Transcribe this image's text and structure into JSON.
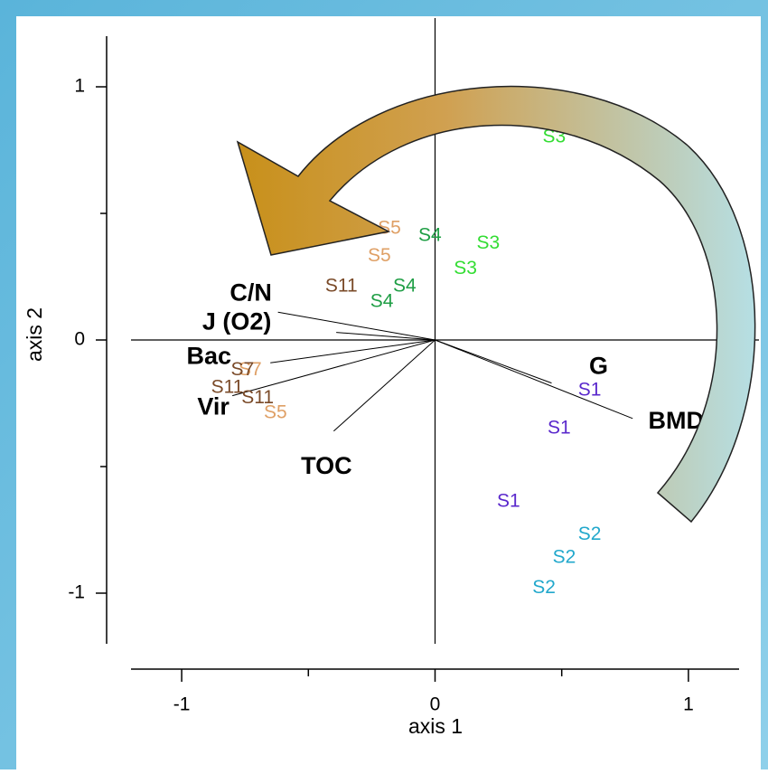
{
  "chart_data": {
    "type": "biplot",
    "x_label": "axis 1",
    "y_label": "axis 2",
    "xlim": [
      -1.2,
      1.2
    ],
    "ylim": [
      -1.2,
      1.2
    ],
    "xticks": [
      -1,
      0,
      1
    ],
    "yticks": [
      -1,
      0,
      1
    ],
    "xminor_ticks": [
      -0.5,
      0.5
    ],
    "yminor_ticks": [
      -0.5,
      0.5
    ],
    "vectors": {
      "labels": [
        "C/N",
        "J (O2)",
        "Bac",
        "Vir",
        "TOC",
        "G",
        "BMD"
      ],
      "x": [
        -0.62,
        -0.39,
        -0.65,
        -0.8,
        -0.4,
        0.46,
        0.78
      ],
      "y": [
        0.11,
        0.03,
        -0.09,
        -0.22,
        -0.36,
        -0.17,
        -0.31
      ]
    },
    "series": [
      {
        "name": "S3",
        "color": "#33dd33",
        "x": [
          0.47,
          0.21,
          0.12
        ],
        "y": [
          0.8,
          0.38,
          0.28
        ]
      },
      {
        "name": "S4",
        "color": "#1f9e45",
        "x": [
          -0.02,
          -0.12,
          -0.21
        ],
        "y": [
          0.41,
          0.21,
          0.15
        ]
      },
      {
        "name": "S5",
        "color": "#dfa066",
        "x": [
          -0.18,
          -0.22,
          -0.63
        ],
        "y": [
          0.44,
          0.33,
          -0.29
        ]
      },
      {
        "name": "S7",
        "color": "#dfa066",
        "x": [
          -0.73
        ],
        "y": [
          -0.12
        ]
      },
      {
        "name": "S11",
        "color": "#7a4a28",
        "x": [
          -0.37,
          -0.82,
          -0.7
        ],
        "y": [
          0.21,
          -0.19,
          -0.23
        ]
      },
      {
        "name": "S7",
        "color": "#7a4a28",
        "x": [
          -0.76
        ],
        "y": [
          -0.12
        ]
      },
      {
        "name": "S1",
        "color": "#5a28cc",
        "x": [
          0.61,
          0.49,
          0.29
        ],
        "y": [
          -0.2,
          -0.35,
          -0.64
        ]
      },
      {
        "name": "S2",
        "color": "#22a8cc",
        "x": [
          0.61,
          0.51,
          0.43
        ],
        "y": [
          -0.77,
          -0.86,
          -0.98
        ]
      }
    ]
  }
}
